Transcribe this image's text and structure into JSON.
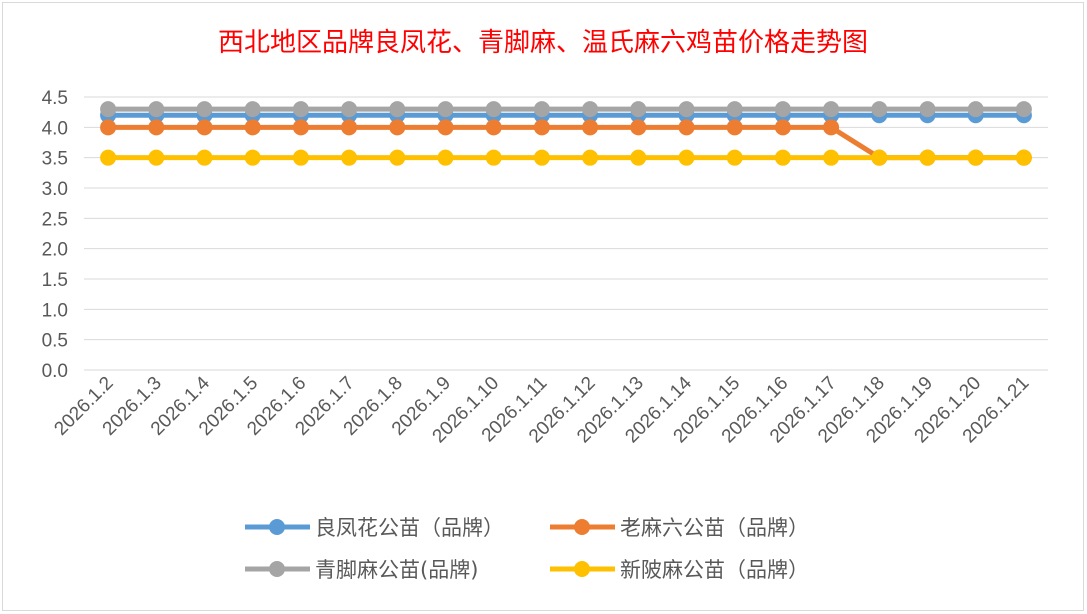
{
  "chart_data": {
    "type": "line",
    "title": "西北地区品牌良凤花、青脚麻、温氏麻六鸡苗价格走势图",
    "title_color": "#ff0000",
    "categories": [
      "2026.1.2",
      "2026.1.3",
      "2026.1.4",
      "2026.1.5",
      "2026.1.6",
      "2026.1.7",
      "2026.1.8",
      "2026.1.9",
      "2026.1.10",
      "2026.1.11",
      "2026.1.12",
      "2026.1.13",
      "2026.1.14",
      "2026.1.15",
      "2026.1.16",
      "2026.1.17",
      "2026.1.18",
      "2026.1.19",
      "2026.1.20",
      "2026.1.21"
    ],
    "ylim": [
      0,
      4.5
    ],
    "yticks": [
      "0.0",
      "0.5",
      "1.0",
      "1.5",
      "2.0",
      "2.5",
      "3.0",
      "3.5",
      "4.0",
      "4.5"
    ],
    "grid": true,
    "legend_position": "bottom",
    "series": [
      {
        "name": "良凤花公苗（品牌）",
        "color": "#5b9bd5",
        "values": [
          4.2,
          4.2,
          4.2,
          4.2,
          4.2,
          4.2,
          4.2,
          4.2,
          4.2,
          4.2,
          4.2,
          4.2,
          4.2,
          4.2,
          4.2,
          4.2,
          4.2,
          4.2,
          4.2,
          4.2
        ]
      },
      {
        "name": "老麻六公苗（品牌）",
        "color": "#ed7d31",
        "values": [
          4.0,
          4.0,
          4.0,
          4.0,
          4.0,
          4.0,
          4.0,
          4.0,
          4.0,
          4.0,
          4.0,
          4.0,
          4.0,
          4.0,
          4.0,
          4.0,
          3.5,
          3.5,
          3.5,
          3.5
        ]
      },
      {
        "name": "青脚麻公苗(品牌)",
        "color": "#a5a5a5",
        "values": [
          4.3,
          4.3,
          4.3,
          4.3,
          4.3,
          4.3,
          4.3,
          4.3,
          4.3,
          4.3,
          4.3,
          4.3,
          4.3,
          4.3,
          4.3,
          4.3,
          4.3,
          4.3,
          4.3,
          4.3
        ]
      },
      {
        "name": "新陂麻公苗（品牌）",
        "color": "#ffc000",
        "values": [
          3.5,
          3.5,
          3.5,
          3.5,
          3.5,
          3.5,
          3.5,
          3.5,
          3.5,
          3.5,
          3.5,
          3.5,
          3.5,
          3.5,
          3.5,
          3.5,
          3.5,
          3.5,
          3.5,
          3.5
        ]
      }
    ]
  }
}
